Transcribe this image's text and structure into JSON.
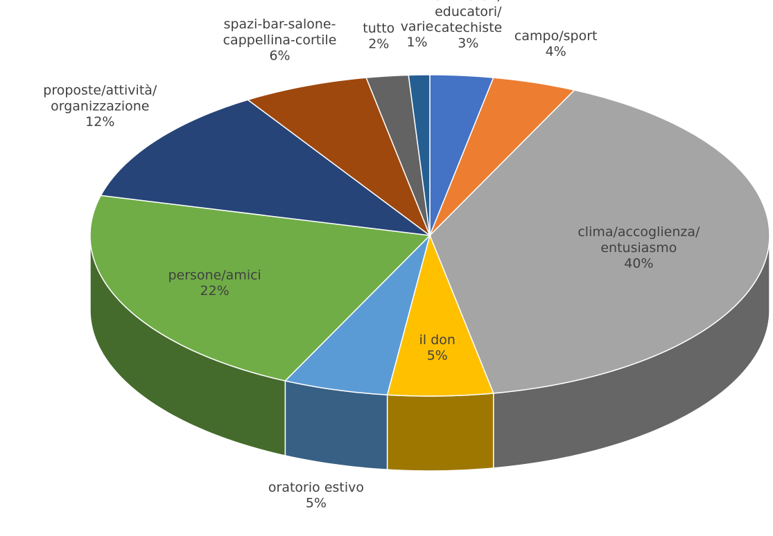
{
  "chart_data": {
    "type": "pie",
    "categories": [
      "animatori/educatori/catechiste",
      "campo/sport",
      "clima/accoglienza/entusiasmo",
      "il don",
      "oratorio estivo",
      "persone/amici",
      "proposte/attività/organizzazione",
      "spazi-bar-salone-cappellina-cortile",
      "tutto",
      "varie"
    ],
    "values": [
      3,
      4,
      40,
      5,
      5,
      22,
      12,
      6,
      2,
      1
    ],
    "value_labels": [
      "3%",
      "4%",
      "40%",
      "5%",
      "5%",
      "22%",
      "12%",
      "6%",
      "2%",
      "1%"
    ],
    "colors": [
      "#4472c4",
      "#ed7d31",
      "#a5a5a5",
      "#ffc000",
      "#5b9bd5",
      "#70ad47",
      "#264478",
      "#9e480e",
      "#636363",
      "#255e91"
    ]
  }
}
